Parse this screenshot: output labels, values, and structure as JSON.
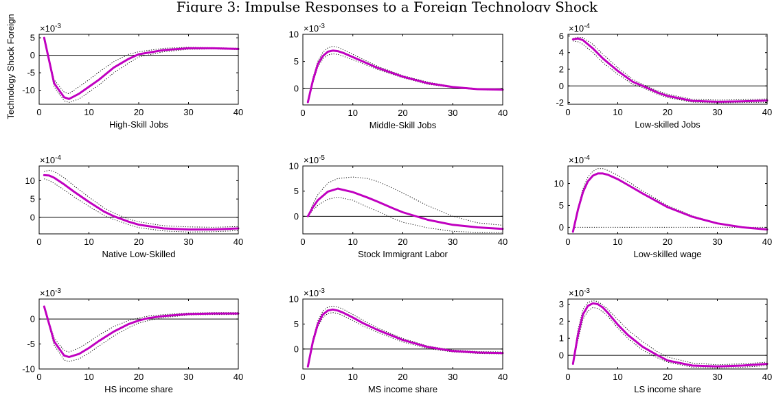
{
  "figure": {
    "title": "Figure 3: Impulse Responses to a Foreign Technology Shock",
    "row_label": "Technology Shock Foreign"
  },
  "chart_data": [
    {
      "type": "line",
      "xlabel": "High-Skill Jobs",
      "exponent": "-3",
      "xlim": [
        0,
        40
      ],
      "ylim": [
        -14,
        6
      ],
      "xticks": [
        0,
        10,
        20,
        30,
        40
      ],
      "yticks": [
        -10,
        -5,
        0,
        5
      ],
      "yticklabels": [
        "-10",
        "-5",
        "0",
        "5"
      ],
      "x": [
        1,
        3,
        5,
        6,
        8,
        10,
        12,
        15,
        18,
        20,
        25,
        30,
        35,
        40
      ],
      "series": [
        {
          "role": "median",
          "values": [
            5,
            -8,
            -12,
            -12.5,
            -11,
            -9,
            -7,
            -3.5,
            -1,
            0.3,
            1.5,
            2,
            2,
            1.8
          ]
        },
        {
          "role": "upper",
          "values": [
            5,
            -7,
            -10.5,
            -11,
            -9,
            -7,
            -4.8,
            -1.8,
            0.3,
            1,
            2,
            2.3,
            2.2,
            2
          ]
        },
        {
          "role": "lower",
          "values": [
            5,
            -9,
            -13,
            -13.5,
            -12.5,
            -10.5,
            -8.5,
            -5,
            -2.2,
            -0.5,
            1,
            1.7,
            1.8,
            1.6
          ]
        }
      ],
      "zero_line": true
    },
    {
      "type": "line",
      "xlabel": "Middle-Skill Jobs",
      "exponent": "-3",
      "xlim": [
        0,
        40
      ],
      "ylim": [
        -3,
        10
      ],
      "xticks": [
        0,
        10,
        20,
        30,
        40
      ],
      "yticks": [
        0,
        5,
        10
      ],
      "yticklabels": [
        "0",
        "5",
        "10"
      ],
      "x": [
        1,
        2,
        3,
        4,
        5,
        6,
        7,
        8,
        10,
        12,
        15,
        20,
        25,
        30,
        35,
        40
      ],
      "series": [
        {
          "role": "median",
          "values": [
            -2.5,
            1.5,
            4.5,
            6,
            6.8,
            7,
            6.9,
            6.6,
            5.8,
            5,
            3.8,
            2.2,
            1,
            0.3,
            -0.1,
            -0.2
          ]
        },
        {
          "role": "upper",
          "values": [
            -2.5,
            2,
            5,
            6.7,
            7.5,
            7.8,
            7.6,
            7.2,
            6.3,
            5.4,
            4.1,
            2.4,
            1.2,
            0.4,
            0,
            -0.2
          ]
        },
        {
          "role": "lower",
          "values": [
            -2.5,
            1,
            4,
            5.5,
            6.2,
            6.4,
            6.3,
            6,
            5.3,
            4.6,
            3.5,
            2,
            0.8,
            0.2,
            -0.2,
            -0.3
          ]
        }
      ],
      "zero_line": true
    },
    {
      "type": "line",
      "xlabel": "Low-skilled Jobs",
      "exponent": "-4",
      "xlim": [
        0,
        40
      ],
      "ylim": [
        -2.2,
        6.2
      ],
      "xticks": [
        0,
        10,
        20,
        30,
        40
      ],
      "yticks": [
        -2,
        0,
        2,
        4,
        6
      ],
      "yticklabels": [
        "-2",
        "0",
        "2",
        "4",
        "6"
      ],
      "x": [
        1,
        2,
        3,
        5,
        7,
        10,
        13,
        15,
        18,
        20,
        25,
        30,
        35,
        40
      ],
      "series": [
        {
          "role": "median",
          "values": [
            5.6,
            5.7,
            5.5,
            4.5,
            3.3,
            1.8,
            0.5,
            0,
            -0.8,
            -1.2,
            -1.8,
            -1.9,
            -1.85,
            -1.75
          ]
        },
        {
          "role": "upper",
          "values": [
            5.7,
            5.85,
            5.8,
            5,
            3.8,
            2.2,
            0.8,
            0.2,
            -0.6,
            -1,
            -1.6,
            -1.7,
            -1.65,
            -1.55
          ]
        },
        {
          "role": "lower",
          "values": [
            5.4,
            5.3,
            5,
            4,
            2.8,
            1.4,
            0.2,
            -0.2,
            -1,
            -1.4,
            -1.95,
            -2.05,
            -2,
            -1.95
          ]
        }
      ],
      "zero_line": true
    },
    {
      "type": "line",
      "xlabel": "Native Low-Skilled",
      "exponent": "-4",
      "xlim": [
        0,
        40
      ],
      "ylim": [
        -4.5,
        14
      ],
      "xticks": [
        0,
        10,
        20,
        30,
        40
      ],
      "yticks": [
        0,
        5,
        10
      ],
      "yticklabels": [
        "0",
        "5",
        "10"
      ],
      "x": [
        1,
        2,
        3,
        5,
        7,
        10,
        13,
        15,
        18,
        20,
        25,
        30,
        35,
        40
      ],
      "series": [
        {
          "role": "median",
          "values": [
            11.5,
            11.4,
            10.8,
            9,
            7,
            4.2,
            1.6,
            0.3,
            -1.2,
            -2,
            -3,
            -3.3,
            -3.3,
            -3
          ]
        },
        {
          "role": "upper",
          "values": [
            12.5,
            12.8,
            12.5,
            10.8,
            8.6,
            5.5,
            2.6,
            1.2,
            -0.5,
            -1.2,
            -2.3,
            -2.6,
            -2.7,
            -2.5
          ]
        },
        {
          "role": "lower",
          "values": [
            10.5,
            10,
            9.3,
            7.5,
            5.6,
            3,
            0.6,
            -0.6,
            -2,
            -2.8,
            -3.7,
            -4,
            -3.9,
            -3.6
          ]
        }
      ],
      "zero_line": true
    },
    {
      "type": "line",
      "xlabel": "Stock Immigrant Labor",
      "exponent": "-5",
      "xlim": [
        0,
        40
      ],
      "ylim": [
        -3.5,
        10
      ],
      "xticks": [
        0,
        10,
        20,
        30,
        40
      ],
      "yticks": [
        0,
        5,
        10
      ],
      "yticklabels": [
        "0",
        "5",
        "10"
      ],
      "x": [
        1,
        2,
        3,
        5,
        7,
        10,
        13,
        15,
        18,
        20,
        25,
        30,
        35,
        40
      ],
      "series": [
        {
          "role": "median",
          "values": [
            0,
            1.8,
            3.2,
            4.9,
            5.5,
            4.8,
            3.7,
            2.9,
            1.6,
            0.8,
            -0.7,
            -1.7,
            -2.2,
            -2.5
          ]
        },
        {
          "role": "upper",
          "values": [
            0,
            2.4,
            4.3,
            6.6,
            7.5,
            7.8,
            7.5,
            6.9,
            5.6,
            4.6,
            2.1,
            0,
            -1.3,
            -1.8
          ]
        },
        {
          "role": "lower",
          "values": [
            0,
            1.2,
            2.2,
            3.4,
            3.8,
            3.2,
            1.8,
            1,
            -0.4,
            -1.2,
            -2.3,
            -3,
            -3.2,
            -3.2
          ]
        }
      ],
      "zero_line": true
    },
    {
      "type": "line",
      "xlabel": "Low-skilled wage",
      "exponent": "-4",
      "xlim": [
        0,
        40
      ],
      "ylim": [
        -1.5,
        14
      ],
      "xticks": [
        0,
        10,
        20,
        30,
        40
      ],
      "yticks": [
        0,
        5,
        10
      ],
      "yticklabels": [
        "0",
        "5",
        "10"
      ],
      "x": [
        1,
        2,
        3,
        4,
        5,
        6,
        7,
        8,
        10,
        12,
        15,
        20,
        25,
        30,
        35,
        40
      ],
      "series": [
        {
          "role": "median",
          "values": [
            -1,
            4,
            8,
            10.5,
            11.8,
            12.3,
            12.3,
            12,
            11,
            9.7,
            7.7,
            4.6,
            2.4,
            0.9,
            0,
            -0.5
          ]
        },
        {
          "role": "upper",
          "values": [
            -1,
            4.5,
            8.8,
            11.5,
            12.8,
            13.4,
            13.4,
            13,
            11.9,
            10.5,
            8.3,
            5,
            2.6,
            1,
            0.1,
            -0.4
          ]
        },
        {
          "role": "lower",
          "values": [
            0,
            0,
            0,
            0,
            0,
            0,
            0,
            0,
            0,
            0,
            0,
            0,
            0,
            0,
            0,
            0
          ]
        }
      ],
      "zero_line": false
    },
    {
      "type": "line",
      "xlabel": "HS income share",
      "exponent": "-3",
      "xlim": [
        0,
        40
      ],
      "ylim": [
        -10,
        4
      ],
      "xticks": [
        0,
        10,
        20,
        30,
        40
      ],
      "yticks": [
        -10,
        -5,
        0
      ],
      "yticklabels": [
        "-10",
        "-5",
        "0"
      ],
      "x": [
        1,
        3,
        5,
        6,
        8,
        10,
        12,
        15,
        18,
        20,
        22,
        25,
        30,
        35,
        40
      ],
      "series": [
        {
          "role": "median",
          "values": [
            2.5,
            -4.5,
            -7.3,
            -7.6,
            -7,
            -5.8,
            -4.4,
            -2.5,
            -1,
            -0.3,
            0.2,
            0.6,
            1,
            1.1,
            1.1
          ]
        },
        {
          "role": "upper",
          "values": [
            2.5,
            -3.8,
            -6.3,
            -6.6,
            -5.8,
            -4.6,
            -3.2,
            -1.5,
            -0.3,
            0.2,
            0.6,
            0.9,
            1.2,
            1.3,
            1.3
          ]
        },
        {
          "role": "lower",
          "values": [
            2.5,
            -5.2,
            -8.2,
            -8.5,
            -8,
            -6.8,
            -5.4,
            -3.4,
            -1.7,
            -0.8,
            -0.3,
            0.3,
            0.8,
            0.9,
            0.9
          ]
        }
      ],
      "zero_line": true
    },
    {
      "type": "line",
      "xlabel": "MS income share",
      "exponent": "-3",
      "xlim": [
        0,
        40
      ],
      "ylim": [
        -4,
        10
      ],
      "xticks": [
        0,
        10,
        20,
        30,
        40
      ],
      "yticks": [
        0,
        5,
        10
      ],
      "yticklabels": [
        "0",
        "5",
        "10"
      ],
      "x": [
        1,
        2,
        3,
        4,
        5,
        6,
        7,
        8,
        10,
        12,
        15,
        20,
        25,
        30,
        35,
        40
      ],
      "series": [
        {
          "role": "median",
          "values": [
            -3.5,
            1.5,
            5,
            6.9,
            7.7,
            7.9,
            7.7,
            7.3,
            6.3,
            5.2,
            3.8,
            1.8,
            0.4,
            -0.4,
            -0.7,
            -0.8
          ]
        },
        {
          "role": "upper",
          "values": [
            -3.5,
            2,
            5.6,
            7.6,
            8.4,
            8.6,
            8.4,
            8,
            6.9,
            5.8,
            4.2,
            2.1,
            0.6,
            -0.2,
            -0.5,
            -0.6
          ]
        },
        {
          "role": "lower",
          "values": [
            -3.5,
            1,
            4.5,
            6.3,
            7.1,
            7.3,
            7.1,
            6.7,
            5.7,
            4.6,
            3.3,
            1.4,
            0.1,
            -0.6,
            -0.9,
            -1
          ]
        }
      ],
      "zero_line": true
    },
    {
      "type": "line",
      "xlabel": "LS income share",
      "exponent": "-3",
      "xlim": [
        0,
        40
      ],
      "ylim": [
        -0.8,
        3.3
      ],
      "xticks": [
        0,
        10,
        20,
        30,
        40
      ],
      "yticks": [
        0,
        1,
        2,
        3
      ],
      "yticklabels": [
        "0",
        "1",
        "2",
        "3"
      ],
      "x": [
        1,
        2,
        3,
        4,
        5,
        6,
        7,
        8,
        10,
        12,
        15,
        18,
        20,
        25,
        30,
        35,
        40
      ],
      "series": [
        {
          "role": "median",
          "values": [
            -0.5,
            1.2,
            2.4,
            2.9,
            3.05,
            3,
            2.8,
            2.5,
            1.8,
            1.2,
            0.5,
            0,
            -0.3,
            -0.6,
            -0.65,
            -0.6,
            -0.5
          ]
        },
        {
          "role": "upper",
          "values": [
            -0.5,
            1.5,
            2.7,
            3.1,
            3.2,
            3.15,
            2.95,
            2.7,
            2.1,
            1.5,
            0.8,
            0.2,
            -0.1,
            -0.45,
            -0.55,
            -0.5,
            -0.4
          ]
        },
        {
          "role": "lower",
          "values": [
            -0.5,
            0.9,
            2.1,
            2.6,
            2.8,
            2.75,
            2.55,
            2.3,
            1.6,
            1,
            0.3,
            -0.15,
            -0.4,
            -0.7,
            -0.75,
            -0.7,
            -0.6
          ]
        }
      ],
      "zero_line": true
    }
  ],
  "colors": {
    "median": "#c000c0",
    "band": "#000000",
    "zero": "#000000"
  }
}
